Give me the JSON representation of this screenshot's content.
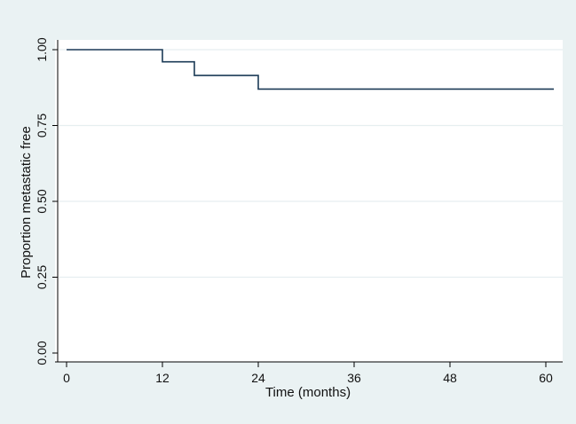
{
  "chart_data": {
    "type": "line",
    "step": true,
    "title": "",
    "xlabel": "Time (months)",
    "ylabel": "Proportion metastatic free",
    "xlim": [
      0,
      60
    ],
    "ylim": [
      0,
      1
    ],
    "x_ticks": [
      0,
      12,
      24,
      36,
      48,
      60
    ],
    "x_tick_labels": [
      "0",
      "12",
      "24",
      "36",
      "48",
      "60"
    ],
    "y_ticks": [
      0,
      0.25,
      0.5,
      0.75,
      1.0
    ],
    "y_tick_labels": [
      "0.00",
      "0.25",
      "0.50",
      "0.75",
      "1.00"
    ],
    "grid": "horizontal",
    "legend": "none",
    "series": [
      {
        "x": [
          0,
          12,
          16,
          24,
          61
        ],
        "y": [
          1.0,
          0.96,
          0.915,
          0.87,
          0.87
        ]
      }
    ],
    "colors": {
      "background": "#eaf2f3",
      "plot_area": "#ffffff",
      "line": "#1c3b57",
      "grid": "#e6eef0"
    }
  }
}
